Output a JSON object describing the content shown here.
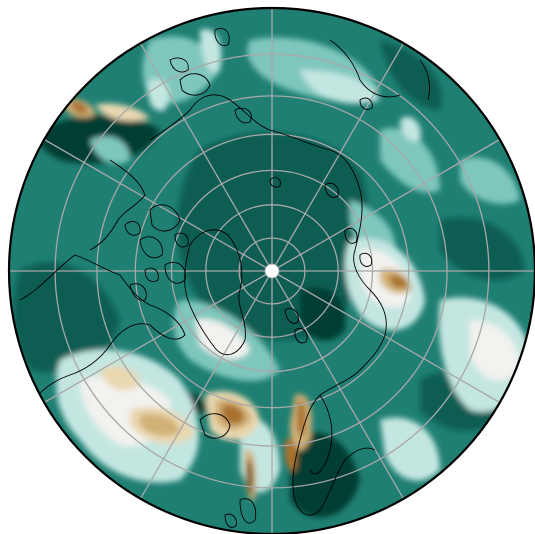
{
  "map": {
    "projection": "north-polar-stereographic",
    "palette": {
      "darkest_teal": "#023d33",
      "dark_teal": "#0b5d52",
      "teal": "#1f7f73",
      "mid_teal": "#3f9e92",
      "light_teal": "#7fc7bd",
      "pale_teal": "#c4e6e1",
      "near_white": "#f2f2ef",
      "tan_light": "#e9d8b0",
      "tan": "#d2b177",
      "brown": "#a8722f",
      "dark_brown": "#6e4514",
      "graticule": "#a8a8a8",
      "coastline": "#000000",
      "outline": "#000000"
    },
    "graticule": {
      "latitudes_deg": [
        80,
        70,
        60,
        50,
        40,
        30
      ],
      "meridian_count": 12
    }
  }
}
